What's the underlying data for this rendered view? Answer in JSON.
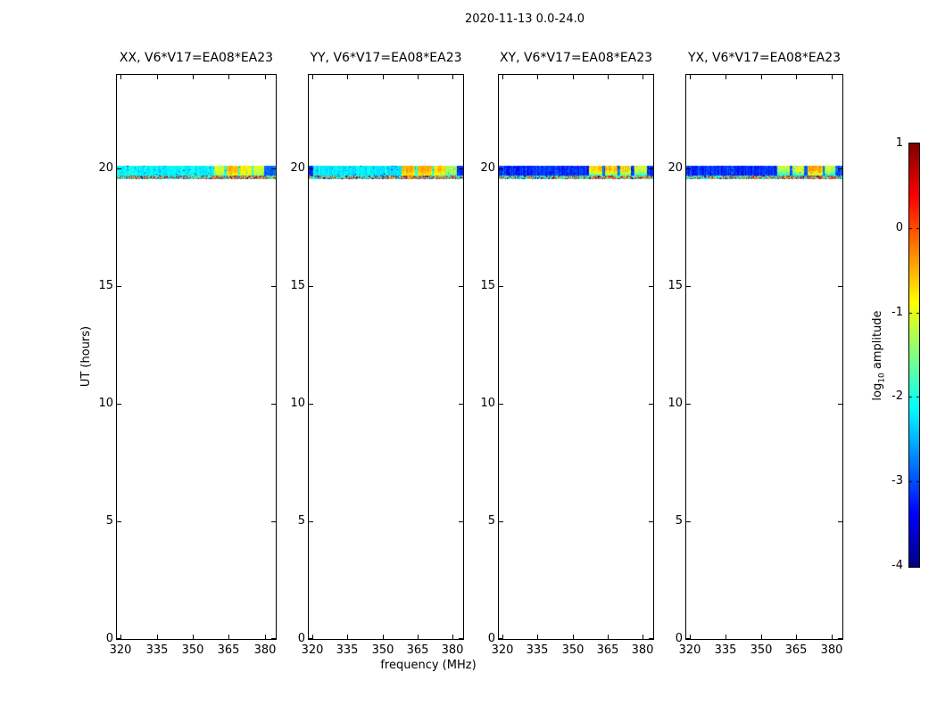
{
  "chart_data": {
    "type": "heatmap",
    "title": "2020-11-13 0.0-24.0",
    "xlabel": "frequency (MHz)",
    "ylabel": "UT (hours)",
    "xlim": [
      318.5,
      384.5
    ],
    "ylim": [
      0,
      24
    ],
    "xticks": [
      320,
      335,
      350,
      365,
      380
    ],
    "yticks": [
      0,
      5,
      10,
      15,
      20
    ],
    "grid": false,
    "colormap": "jet",
    "colorbar": {
      "label": "log10 amplitude",
      "label_prefix": "log",
      "label_sub": "10",
      "label_suffix": " amplitude",
      "ticks": [
        1,
        0,
        -1,
        -2,
        -3,
        -4
      ],
      "vmin": -4,
      "vmax": 1,
      "position": "right"
    },
    "panels": [
      {
        "title": "XX, V6*V17=EA08*EA23",
        "band": {
          "upper": {
            "ut": [
              19.73,
              20.14
            ],
            "noise": 0.3,
            "patch_vgrad": 0.35,
            "segments": [
              {
                "f": [
                  0,
                  0.61
                ],
                "v": -2.15
              },
              {
                "f": [
                  0.61,
                  0.675
                ],
                "v": -1.1
              },
              {
                "f": [
                  0.675,
                  0.693
                ],
                "v": -2.0
              },
              {
                "f": [
                  0.693,
                  0.765
                ],
                "v": -0.55
              },
              {
                "f": [
                  0.765,
                  0.778
                ],
                "v": -1.9
              },
              {
                "f": [
                  0.778,
                  0.848
                ],
                "v": -0.8
              },
              {
                "f": [
                  0.848,
                  0.862
                ],
                "v": -1.9
              },
              {
                "f": [
                  0.862,
                  0.928
                ],
                "v": -1.05
              },
              {
                "f": [
                  0.928,
                  1.0
                ],
                "v": -2.8
              }
            ]
          },
          "lower": {
            "ut": [
              19.55,
              19.73
            ],
            "base": -2.0
          }
        }
      },
      {
        "title": "YY, V6*V17=EA08*EA23",
        "band": {
          "upper": {
            "ut": [
              19.73,
              20.14
            ],
            "noise": 0.3,
            "patch_vgrad": 0.35,
            "segments": [
              {
                "f": [
                  0,
                  0.03
                ],
                "v": -3.2
              },
              {
                "f": [
                  0.03,
                  0.6
                ],
                "v": -2.2
              },
              {
                "f": [
                  0.6,
                  0.69
                ],
                "v": -0.5
              },
              {
                "f": [
                  0.69,
                  0.707
                ],
                "v": -1.9
              },
              {
                "f": [
                  0.707,
                  0.795
                ],
                "v": -0.5
              },
              {
                "f": [
                  0.795,
                  0.812
                ],
                "v": -1.9
              },
              {
                "f": [
                  0.812,
                  0.885
                ],
                "v": -0.65
              },
              {
                "f": [
                  0.885,
                  0.962
                ],
                "v": -1.3
              },
              {
                "f": [
                  0.962,
                  1.0
                ],
                "v": -3.2
              }
            ]
          },
          "lower": {
            "ut": [
              19.55,
              19.73
            ],
            "base": -2.1
          }
        }
      },
      {
        "title": "XY, V6*V17=EA08*EA23",
        "band": {
          "upper": {
            "ut": [
              19.73,
              20.14
            ],
            "noise": 0.5,
            "patch_vgrad": 0.9,
            "segments": [
              {
                "f": [
                  0,
                  0.583
                ],
                "v": -3.15
              },
              {
                "f": [
                  0.583,
                  0.668
                ],
                "v": -0.7
              },
              {
                "f": [
                  0.668,
                  0.687
                ],
                "v": -2.9
              },
              {
                "f": [
                  0.687,
                  0.766
                ],
                "v": -0.6
              },
              {
                "f": [
                  0.766,
                  0.785
                ],
                "v": -2.9
              },
              {
                "f": [
                  0.785,
                  0.857
                ],
                "v": -0.7
              },
              {
                "f": [
                  0.857,
                  0.881
                ],
                "v": -3.0
              },
              {
                "f": [
                  0.881,
                  0.958
                ],
                "v": -1.1
              },
              {
                "f": [
                  0.958,
                  1.0
                ],
                "v": -3.0
              }
            ]
          },
          "lower": {
            "ut": [
              19.55,
              19.73
            ],
            "base": -2.0
          }
        }
      },
      {
        "title": "YX, V6*V17=EA08*EA23",
        "band": {
          "upper": {
            "ut": [
              19.73,
              20.14
            ],
            "noise": 0.5,
            "patch_vgrad": 0.9,
            "segments": [
              {
                "f": [
                  0,
                  0.585
                ],
                "v": -3.15
              },
              {
                "f": [
                  0.585,
                  0.66
                ],
                "v": -1.2
              },
              {
                "f": [
                  0.66,
                  0.678
                ],
                "v": -2.9
              },
              {
                "f": [
                  0.678,
                  0.757
                ],
                "v": -1.05
              },
              {
                "f": [
                  0.757,
                  0.776
                ],
                "v": -2.9
              },
              {
                "f": [
                  0.776,
                  0.872
                ],
                "v": -0.45
              },
              {
                "f": [
                  0.872,
                  0.888
                ],
                "v": -2.9
              },
              {
                "f": [
                  0.888,
                  0.955
                ],
                "v": -1.2
              },
              {
                "f": [
                  0.955,
                  1.0
                ],
                "v": -3.0
              }
            ]
          },
          "lower": {
            "ut": [
              19.55,
              19.73
            ],
            "base": -2.0
          }
        }
      }
    ]
  }
}
